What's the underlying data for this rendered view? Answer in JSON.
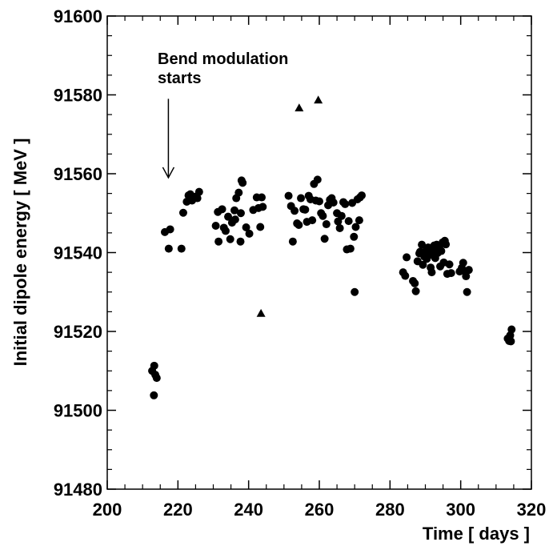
{
  "chart_data": {
    "type": "scatter",
    "title": "",
    "xlabel": "Time  [ days ]",
    "ylabel": "Initial dipole energy  [ MeV ]",
    "xlim": [
      200,
      320
    ],
    "ylim": [
      91480,
      91600
    ],
    "x_ticks": [
      200,
      220,
      240,
      260,
      280,
      300,
      320
    ],
    "y_ticks": [
      91480,
      91500,
      91520,
      91540,
      91560,
      91580,
      91600
    ],
    "grid": false,
    "legend": "none",
    "annotation": {
      "lines": [
        "Bend modulation",
        "starts"
      ],
      "arrow_x": 217.3,
      "arrow_from_y": 91579,
      "arrow_to_y": 91559
    },
    "series": [
      {
        "marker": "circle",
        "points": [
          [
            212.7,
            91510.0
          ],
          [
            213.3,
            91511.3
          ],
          [
            213.6,
            91509.0
          ],
          [
            214.0,
            91508.2
          ],
          [
            213.2,
            91503.8
          ],
          [
            216.3,
            91545.2
          ],
          [
            217.8,
            91545.9
          ],
          [
            217.4,
            91541.0
          ],
          [
            221.0,
            91541.0
          ],
          [
            221.5,
            91550.1
          ],
          [
            222.5,
            91552.9
          ],
          [
            223.5,
            91554.8
          ],
          [
            224.0,
            91553.2
          ],
          [
            225.0,
            91554.2
          ],
          [
            225.5,
            91553.8
          ],
          [
            226.0,
            91555.4
          ],
          [
            223.0,
            91554.5
          ],
          [
            230.7,
            91546.8
          ],
          [
            231.3,
            91550.3
          ],
          [
            231.5,
            91542.8
          ],
          [
            232.5,
            91551.0
          ],
          [
            233.5,
            91545.5
          ],
          [
            233.0,
            91546.3
          ],
          [
            234.2,
            91549.1
          ],
          [
            234.8,
            91543.4
          ],
          [
            235.3,
            91547.6
          ],
          [
            236.0,
            91550.7
          ],
          [
            236.5,
            91553.8
          ],
          [
            237.2,
            91555.2
          ],
          [
            237.8,
            91550.0
          ],
          [
            238.3,
            91557.7
          ],
          [
            238.0,
            91558.3
          ],
          [
            236.2,
            91548.4
          ],
          [
            237.7,
            91542.8
          ],
          [
            239.3,
            91546.4
          ],
          [
            240.2,
            91544.8
          ],
          [
            241.3,
            91550.8
          ],
          [
            242.3,
            91554.0
          ],
          [
            242.8,
            91551.3
          ],
          [
            243.3,
            91546.5
          ],
          [
            244.0,
            91551.6
          ],
          [
            243.7,
            91554.0
          ],
          [
            251.3,
            91554.4
          ],
          [
            252.0,
            91551.8
          ],
          [
            252.5,
            91542.8
          ],
          [
            253.0,
            91550.6
          ],
          [
            253.7,
            91547.4
          ],
          [
            254.2,
            91547.0
          ],
          [
            254.8,
            91553.8
          ],
          [
            255.5,
            91551.0
          ],
          [
            256.0,
            91550.9
          ],
          [
            256.5,
            91547.8
          ],
          [
            257.0,
            91554.4
          ],
          [
            257.5,
            91553.5
          ],
          [
            258.0,
            91548.2
          ],
          [
            258.5,
            91557.4
          ],
          [
            259.0,
            91553.2
          ],
          [
            259.5,
            91558.5
          ],
          [
            260.0,
            91553.0
          ],
          [
            260.5,
            91550.0
          ],
          [
            261.0,
            91549.3
          ],
          [
            261.5,
            91543.5
          ],
          [
            262.0,
            91547.2
          ],
          [
            262.5,
            91552.0
          ],
          [
            263.0,
            91553.4
          ],
          [
            263.5,
            91553.8
          ],
          [
            264.0,
            91552.7
          ],
          [
            265.0,
            91550.0
          ],
          [
            265.3,
            91547.9
          ],
          [
            265.8,
            91546.2
          ],
          [
            266.3,
            91549.3
          ],
          [
            266.8,
            91552.8
          ],
          [
            267.3,
            91552.3
          ],
          [
            267.8,
            91540.8
          ],
          [
            268.3,
            91548.0
          ],
          [
            268.8,
            91541.0
          ],
          [
            269.3,
            91552.6
          ],
          [
            269.8,
            91544.0
          ],
          [
            270.3,
            91546.5
          ],
          [
            270.0,
            91530.0
          ],
          [
            270.8,
            91553.5
          ],
          [
            271.3,
            91548.2
          ],
          [
            271.5,
            91554.0
          ],
          [
            272.0,
            91554.5
          ],
          [
            283.7,
            91535.0
          ],
          [
            284.3,
            91534.1
          ],
          [
            284.7,
            91538.8
          ],
          [
            286.5,
            91532.8
          ],
          [
            287.0,
            91532.2
          ],
          [
            287.3,
            91530.2
          ],
          [
            287.8,
            91537.8
          ],
          [
            288.3,
            91539.8
          ],
          [
            288.5,
            91540.2
          ],
          [
            289.0,
            91542.0
          ],
          [
            289.3,
            91536.9
          ],
          [
            289.7,
            91539.0
          ],
          [
            290.0,
            91540.3
          ],
          [
            290.4,
            91538.4
          ],
          [
            290.8,
            91541.3
          ],
          [
            291.2,
            91539.4
          ],
          [
            291.5,
            91536.2
          ],
          [
            291.8,
            91535.0
          ],
          [
            292.2,
            91540.1
          ],
          [
            292.5,
            91541.8
          ],
          [
            292.8,
            91538.6
          ],
          [
            293.2,
            91542.0
          ],
          [
            293.5,
            91539.9
          ],
          [
            293.9,
            91541.2
          ],
          [
            294.2,
            91536.5
          ],
          [
            294.5,
            91540.4
          ],
          [
            294.9,
            91542.6
          ],
          [
            295.2,
            91537.5
          ],
          [
            295.5,
            91543.0
          ],
          [
            295.8,
            91542.1
          ],
          [
            296.2,
            91534.6
          ],
          [
            296.8,
            91537.0
          ],
          [
            297.3,
            91534.8
          ],
          [
            299.7,
            91535.2
          ],
          [
            300.3,
            91536.1
          ],
          [
            300.7,
            91537.4
          ],
          [
            301.2,
            91535.3
          ],
          [
            301.5,
            91534.0
          ],
          [
            301.8,
            91530.0
          ],
          [
            302.3,
            91535.6
          ],
          [
            313.3,
            91518.2
          ],
          [
            313.7,
            91517.6
          ],
          [
            314.0,
            91519.0
          ],
          [
            314.4,
            91520.5
          ],
          [
            314.2,
            91517.5
          ]
        ]
      },
      {
        "marker": "triangle",
        "points": [
          [
            243.5,
            91524.6
          ],
          [
            254.3,
            91576.7
          ],
          [
            259.7,
            91578.7
          ]
        ]
      }
    ]
  }
}
